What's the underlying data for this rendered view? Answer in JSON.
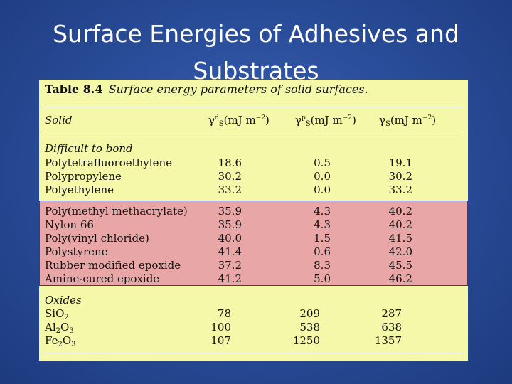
{
  "slide": {
    "title_line1": "Surface Energies of Adhesives and",
    "title_line2": "Substrates"
  },
  "table": {
    "label": "Table 8.4",
    "caption": "Surface energy parameters of solid surfaces.",
    "columns": {
      "solid": "Solid",
      "dispersive": "γdS(mJ m−2)",
      "polar": "γpS(mJ m−2)",
      "total": "γS(mJ m−2)"
    },
    "sections": [
      {
        "heading": "Difficult to bond",
        "rows": [
          {
            "solid": "Polytetrafluoroethylene",
            "d": "18.6",
            "p": "0.5",
            "t": "19.1"
          },
          {
            "solid": "Polypropylene",
            "d": "30.2",
            "p": "0.0",
            "t": "30.2"
          },
          {
            "solid": "Polyethylene",
            "d": "33.2",
            "p": "0.0",
            "t": "33.2"
          }
        ]
      },
      {
        "heading": "",
        "rows": [
          {
            "solid": "Poly(methyl methacrylate)",
            "d": "35.9",
            "p": "4.3",
            "t": "40.2"
          },
          {
            "solid": "Nylon 66",
            "d": "35.9",
            "p": "4.3",
            "t": "40.2"
          },
          {
            "solid": "Poly(vinyl chloride)",
            "d": "40.0",
            "p": "1.5",
            "t": "41.5"
          },
          {
            "solid": "Polystyrene",
            "d": "41.4",
            "p": "0.6",
            "t": "42.0"
          },
          {
            "solid": "Rubber modified epoxide",
            "d": "37.2",
            "p": "8.3",
            "t": "45.5"
          },
          {
            "solid": "Amine-cured epoxide",
            "d": "41.2",
            "p": "5.0",
            "t": "46.2"
          }
        ]
      },
      {
        "heading": "Oxides",
        "rows": [
          {
            "solid": "SiO2",
            "d": "78",
            "p": "209",
            "t": "287"
          },
          {
            "solid": "Al2O3",
            "d": "100",
            "p": "538",
            "t": "638"
          },
          {
            "solid": "Fe2O3",
            "d": "107",
            "p": "1250",
            "t": "1357"
          }
        ]
      }
    ]
  },
  "colors": {
    "background": "#2b4f9c",
    "panel": "#f4f8a8",
    "highlight": "#e8a6a6"
  }
}
